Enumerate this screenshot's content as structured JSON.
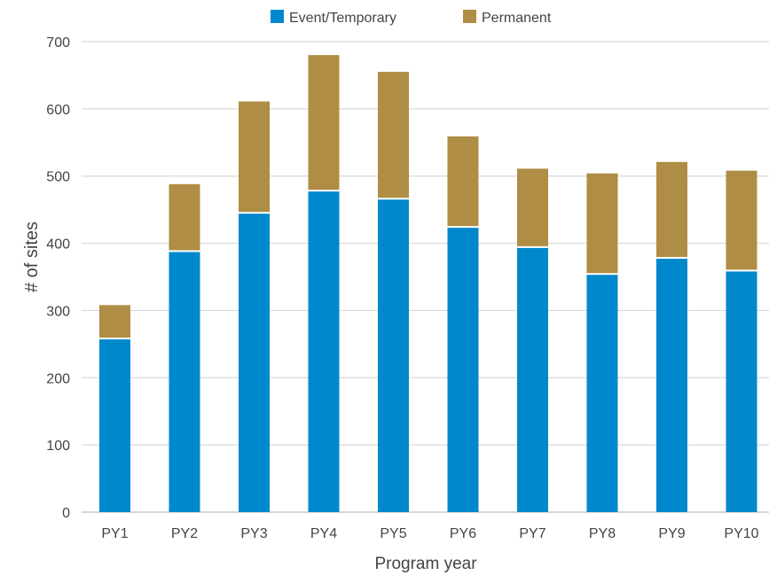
{
  "chart_data": {
    "type": "bar",
    "stacked": true,
    "title": "",
    "xlabel": "Program year",
    "ylabel": "# of sites",
    "ylim": [
      0,
      700
    ],
    "yticks": [
      0,
      100,
      200,
      300,
      400,
      500,
      600,
      700
    ],
    "grid": true,
    "legend_position": "top-center",
    "categories": [
      "PY1",
      "PY2",
      "PY3",
      "PY4",
      "PY5",
      "PY6",
      "PY7",
      "PY8",
      "PY9",
      "PY10"
    ],
    "series": [
      {
        "name": "Event/Temporary",
        "color": "#0088CC",
        "values": [
          257,
          387,
          444,
          477,
          465,
          423,
          393,
          353,
          377,
          358
        ]
      },
      {
        "name": "Permanent",
        "color": "#B08D44",
        "values": [
          51,
          101,
          167,
          203,
          190,
          136,
          118,
          151,
          144,
          150
        ]
      }
    ]
  }
}
